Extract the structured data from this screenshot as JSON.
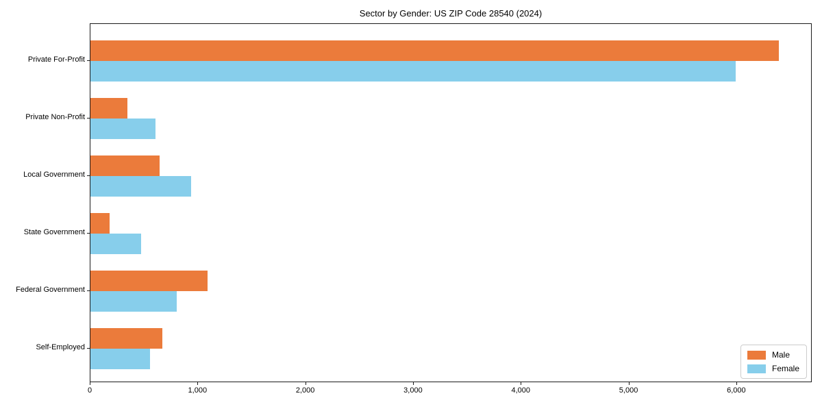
{
  "chart_data": {
    "type": "bar",
    "orientation": "horizontal",
    "title": "Sector by Gender: US ZIP Code 28540 (2024)",
    "categories": [
      "Private For-Profit",
      "Private Non-Profit",
      "Local Government",
      "State Government",
      "Federal Government",
      "Self-Employed"
    ],
    "series": [
      {
        "name": "Male",
        "color": "#EB7B3B",
        "values": [
          6400,
          345,
          645,
          180,
          1090,
          670
        ]
      },
      {
        "name": "Female",
        "color": "#87CEEB",
        "values": [
          6000,
          605,
          935,
          470,
          800,
          555
        ]
      }
    ],
    "xlim": [
      0,
      6700
    ],
    "x_ticks": [
      0,
      1000,
      2000,
      3000,
      4000,
      5000,
      6000
    ],
    "x_tick_labels": [
      "0",
      "1,000",
      "2,000",
      "3,000",
      "4,000",
      "5,000",
      "6,000"
    ],
    "xlabel": "",
    "ylabel": "",
    "grid": false,
    "legend": {
      "position": "lower right"
    },
    "colors": {
      "spine": "#1a1a1a",
      "background": "#ffffff",
      "legend_border": "#cccccc"
    }
  }
}
